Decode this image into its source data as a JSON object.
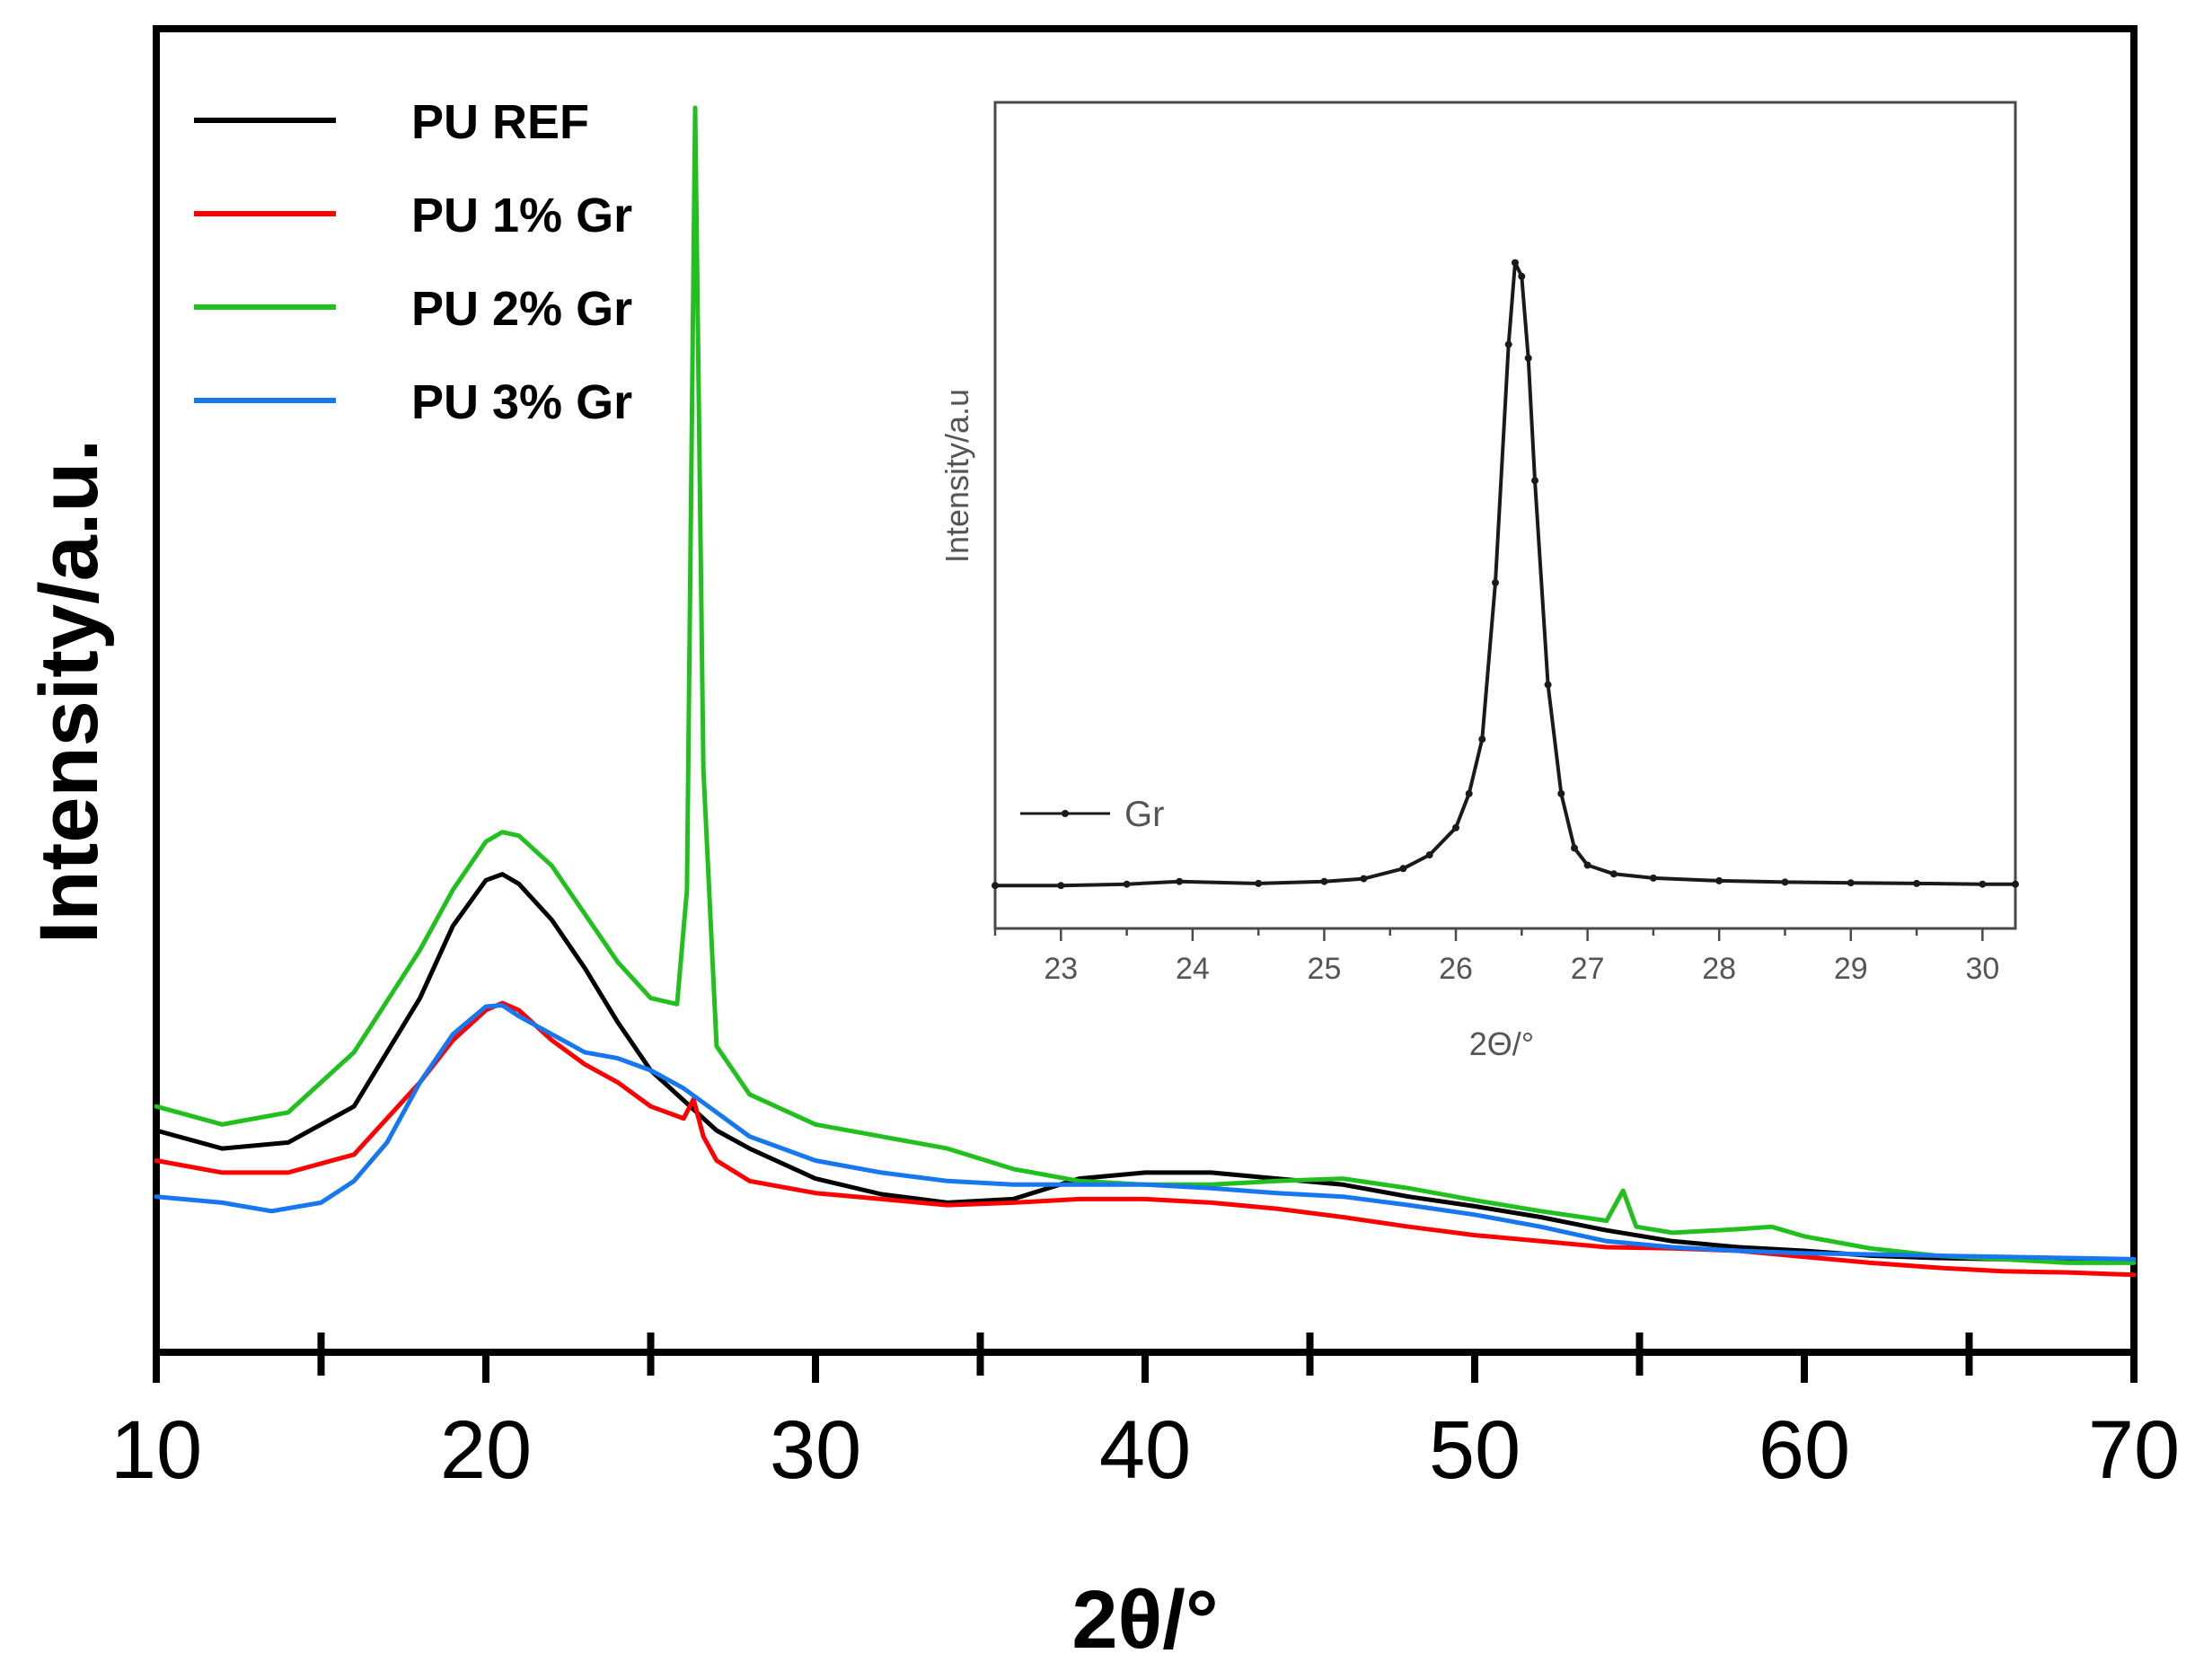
{
  "chart_data": [
    {
      "type": "line",
      "title": "",
      "xlabel": "2θ/°",
      "ylabel": "Intensity/a.u.",
      "xlim": [
        10,
        70
      ],
      "ylim": [
        0,
        100
      ],
      "xticks": [
        10,
        20,
        30,
        40,
        50,
        60,
        70
      ],
      "xtick_labels": [
        "10",
        "20",
        "30",
        "40",
        "50",
        "60",
        "70"
      ],
      "minor_xticks": [
        15,
        25,
        35,
        45,
        55,
        65
      ],
      "y_tick_labels_shown": false,
      "grid": false,
      "legend_position": "top-left",
      "series": [
        {
          "name": "PU REF",
          "color": "#000000",
          "points": [
            [
              10,
              15
            ],
            [
              12,
              13.5
            ],
            [
              14,
              14
            ],
            [
              16,
              17
            ],
            [
              18,
              26
            ],
            [
              19,
              32
            ],
            [
              20,
              35.8
            ],
            [
              20.5,
              36.3
            ],
            [
              21,
              35.5
            ],
            [
              22,
              32.5
            ],
            [
              23,
              28.5
            ],
            [
              24,
              24
            ],
            [
              25,
              20
            ],
            [
              26,
              17.5
            ],
            [
              27,
              15
            ],
            [
              28,
              13.5
            ],
            [
              30,
              11
            ],
            [
              32,
              9.7
            ],
            [
              34,
              9
            ],
            [
              36,
              9.3
            ],
            [
              38,
              11
            ],
            [
              40,
              11.5
            ],
            [
              42,
              11.5
            ],
            [
              44,
              11
            ],
            [
              46,
              10.5
            ],
            [
              48,
              9.5
            ],
            [
              50,
              8.7
            ],
            [
              52,
              7.8
            ],
            [
              54,
              6.7
            ],
            [
              56,
              5.8
            ],
            [
              58,
              5.3
            ],
            [
              60,
              5
            ],
            [
              62,
              4.6
            ],
            [
              64,
              4.4
            ],
            [
              66,
              4.3
            ],
            [
              68,
              4.2
            ],
            [
              70,
              4.2
            ]
          ]
        },
        {
          "name": "PU 1% Gr",
          "color": "#ff0000",
          "points": [
            [
              10,
              12.5
            ],
            [
              12,
              11.5
            ],
            [
              14,
              11.5
            ],
            [
              16,
              13
            ],
            [
              18,
              19
            ],
            [
              19,
              22.5
            ],
            [
              20,
              25
            ],
            [
              20.5,
              25.6
            ],
            [
              21,
              25
            ],
            [
              22,
              22.5
            ],
            [
              23,
              20.5
            ],
            [
              24,
              19
            ],
            [
              25,
              17
            ],
            [
              26,
              16
            ],
            [
              26.3,
              17.6
            ],
            [
              26.6,
              14.5
            ],
            [
              27,
              12.5
            ],
            [
              28,
              10.8
            ],
            [
              30,
              9.8
            ],
            [
              32,
              9.3
            ],
            [
              34,
              8.8
            ],
            [
              36,
              9
            ],
            [
              38,
              9.3
            ],
            [
              40,
              9.3
            ],
            [
              42,
              9
            ],
            [
              44,
              8.5
            ],
            [
              46,
              7.8
            ],
            [
              48,
              7
            ],
            [
              50,
              6.3
            ],
            [
              52,
              5.8
            ],
            [
              54,
              5.3
            ],
            [
              56,
              5.2
            ],
            [
              58,
              5
            ],
            [
              60,
              4.5
            ],
            [
              62,
              4
            ],
            [
              64,
              3.6
            ],
            [
              66,
              3.3
            ],
            [
              68,
              3.2
            ],
            [
              70,
              3
            ]
          ]
        },
        {
          "name": "PU 2% Gr",
          "color": "#22c01e",
          "points": [
            [
              10,
              17
            ],
            [
              12,
              15.5
            ],
            [
              14,
              16.5
            ],
            [
              16,
              21.5
            ],
            [
              18,
              30
            ],
            [
              19,
              35
            ],
            [
              20,
              39
            ],
            [
              20.5,
              39.8
            ],
            [
              21,
              39.5
            ],
            [
              22,
              37
            ],
            [
              23,
              33
            ],
            [
              24,
              29
            ],
            [
              25,
              26
            ],
            [
              25.8,
              25.5
            ],
            [
              26.1,
              35
            ],
            [
              26.35,
              100
            ],
            [
              26.6,
              45
            ],
            [
              27,
              22
            ],
            [
              28,
              18
            ],
            [
              30,
              15.5
            ],
            [
              32,
              14.5
            ],
            [
              34,
              13.5
            ],
            [
              36,
              11.8
            ],
            [
              38,
              10.8
            ],
            [
              40,
              10.5
            ],
            [
              42,
              10.5
            ],
            [
              44,
              10.8
            ],
            [
              46,
              11
            ],
            [
              48,
              10.2
            ],
            [
              50,
              9.2
            ],
            [
              52,
              8.3
            ],
            [
              54,
              7.5
            ],
            [
              54.5,
              10
            ],
            [
              54.9,
              7
            ],
            [
              56,
              6.5
            ],
            [
              58,
              6.8
            ],
            [
              59,
              7
            ],
            [
              60,
              6.2
            ],
            [
              62,
              5.2
            ],
            [
              64,
              4.6
            ],
            [
              66,
              4.3
            ],
            [
              68,
              4
            ],
            [
              70,
              4
            ]
          ]
        },
        {
          "name": "PU 3% Gr",
          "color": "#1677f0",
          "points": [
            [
              10,
              9.5
            ],
            [
              12,
              9
            ],
            [
              13.5,
              8.3
            ],
            [
              15,
              9
            ],
            [
              16,
              10.8
            ],
            [
              17,
              14
            ],
            [
              18,
              19
            ],
            [
              19,
              23
            ],
            [
              20,
              25.3
            ],
            [
              20.5,
              25.4
            ],
            [
              21,
              24.5
            ],
            [
              22,
              23
            ],
            [
              23,
              21.5
            ],
            [
              24,
              21
            ],
            [
              25,
              20
            ],
            [
              26,
              18.5
            ],
            [
              27,
              16.5
            ],
            [
              28,
              14.5
            ],
            [
              30,
              12.5
            ],
            [
              32,
              11.5
            ],
            [
              34,
              10.8
            ],
            [
              36,
              10.5
            ],
            [
              38,
              10.5
            ],
            [
              40,
              10.5
            ],
            [
              42,
              10.2
            ],
            [
              44,
              9.8
            ],
            [
              46,
              9.5
            ],
            [
              48,
              8.8
            ],
            [
              50,
              8
            ],
            [
              52,
              7
            ],
            [
              54,
              5.8
            ],
            [
              56,
              5.3
            ],
            [
              58,
              5
            ],
            [
              60,
              4.8
            ],
            [
              62,
              4.7
            ],
            [
              64,
              4.6
            ],
            [
              66,
              4.5
            ],
            [
              68,
              4.4
            ],
            [
              70,
              4.3
            ]
          ]
        }
      ]
    },
    {
      "type": "line",
      "title": "",
      "xlabel": "2Θ/°",
      "ylabel": "Intensity/a.u",
      "xlim": [
        22.5,
        30.25
      ],
      "ylim": [
        0,
        100
      ],
      "xticks": [
        23,
        24,
        25,
        26,
        27,
        28,
        29,
        30
      ],
      "xtick_labels": [
        "23",
        "24",
        "25",
        "26",
        "27",
        "28",
        "29",
        "30"
      ],
      "y_tick_labels_shown": false,
      "grid": false,
      "legend_position": "bottom-left",
      "series": [
        {
          "name": "Gr",
          "color": "#1a1a1a",
          "markers": true,
          "points": [
            [
              22.5,
              0.5
            ],
            [
              23,
              0.5
            ],
            [
              23.5,
              0.7
            ],
            [
              23.9,
              1.1
            ],
            [
              24.5,
              0.8
            ],
            [
              25,
              1.1
            ],
            [
              25.3,
              1.5
            ],
            [
              25.6,
              3
            ],
            [
              25.8,
              5
            ],
            [
              26,
              9
            ],
            [
              26.1,
              14
            ],
            [
              26.2,
              22
            ],
            [
              26.3,
              45
            ],
            [
              26.4,
              80
            ],
            [
              26.45,
              92
            ],
            [
              26.5,
              90
            ],
            [
              26.55,
              78
            ],
            [
              26.6,
              60
            ],
            [
              26.7,
              30
            ],
            [
              26.8,
              14
            ],
            [
              26.9,
              6
            ],
            [
              27,
              3.5
            ],
            [
              27.2,
              2.2
            ],
            [
              27.5,
              1.6
            ],
            [
              28,
              1.2
            ],
            [
              28.5,
              1
            ],
            [
              29,
              0.9
            ],
            [
              29.5,
              0.8
            ],
            [
              30,
              0.7
            ],
            [
              30.25,
              0.7
            ]
          ]
        }
      ]
    }
  ]
}
